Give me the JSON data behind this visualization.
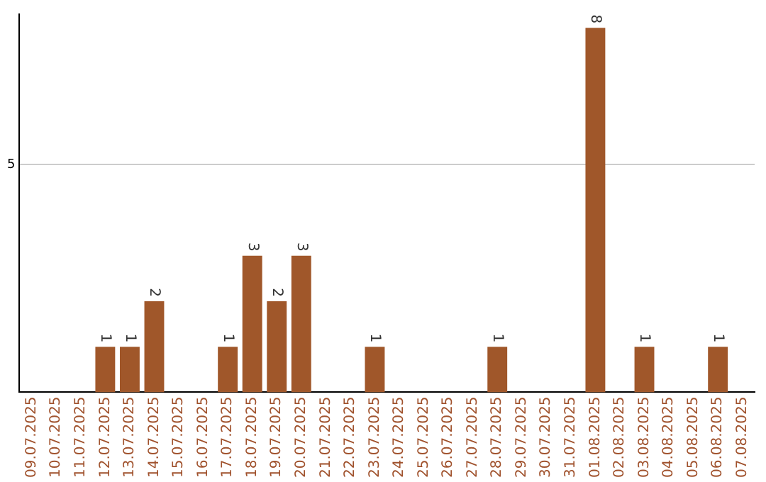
{
  "chart_data": {
    "type": "bar",
    "categories": [
      "09.07.2025",
      "10.07.2025",
      "11.07.2025",
      "12.07.2025",
      "13.07.2025",
      "14.07.2025",
      "15.07.2025",
      "16.07.2025",
      "17.07.2025",
      "18.07.2025",
      "19.07.2025",
      "20.07.2025",
      "21.07.2025",
      "22.07.2025",
      "23.07.2025",
      "24.07.2025",
      "25.07.2025",
      "26.07.2025",
      "27.07.2025",
      "28.07.2025",
      "29.07.2025",
      "30.07.2025",
      "31.07.2025",
      "01.08.2025",
      "02.08.2025",
      "03.08.2025",
      "04.08.2025",
      "05.08.2025",
      "06.08.2025",
      "07.08.2025"
    ],
    "values": [
      0,
      0,
      0,
      1,
      1,
      2,
      0,
      0,
      1,
      3,
      2,
      3,
      0,
      0,
      1,
      0,
      0,
      0,
      0,
      1,
      0,
      0,
      0,
      8,
      0,
      1,
      0,
      0,
      1,
      0
    ],
    "value_labels": [
      null,
      null,
      null,
      "1",
      "1",
      "2",
      null,
      null,
      "1",
      "3",
      "2",
      "3",
      null,
      null,
      "1",
      null,
      null,
      null,
      null,
      "1",
      null,
      null,
      null,
      "8",
      null,
      "1",
      null,
      null,
      "1",
      null
    ],
    "color": "#a0572a",
    "ylim": [
      0,
      8.3
    ],
    "yticks": [
      5
    ],
    "grid": "y"
  }
}
